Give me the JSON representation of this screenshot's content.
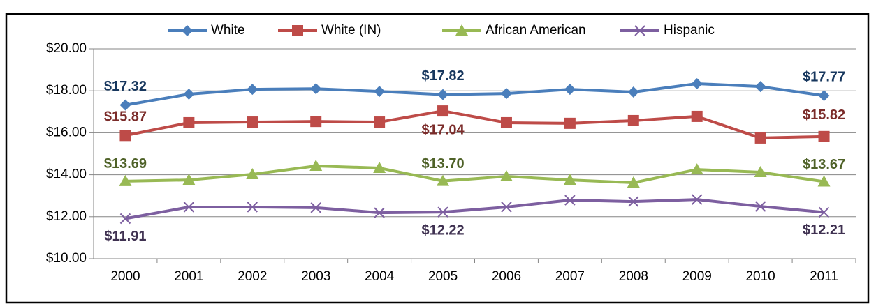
{
  "chart_data": {
    "type": "line",
    "categories": [
      "2000",
      "2001",
      "2002",
      "2003",
      "2004",
      "2005",
      "2006",
      "2007",
      "2008",
      "2009",
      "2010",
      "2011"
    ],
    "ylim": [
      10,
      20
    ],
    "yticks": [
      {
        "value": 10,
        "label": "$10.00"
      },
      {
        "value": 12,
        "label": "$12.00"
      },
      {
        "value": 14,
        "label": "$14.00"
      },
      {
        "value": 16,
        "label": "$16.00"
      },
      {
        "value": 18,
        "label": "$18.00"
      },
      {
        "value": 20,
        "label": "$20.00"
      }
    ],
    "grid": true,
    "legend": "top",
    "series": [
      {
        "name": "White",
        "color": "#4a7ebb",
        "label_color": "#17375e",
        "marker": "diamond",
        "values": [
          17.32,
          17.84,
          18.07,
          18.1,
          17.97,
          17.82,
          17.87,
          18.07,
          17.94,
          18.34,
          18.2,
          17.77
        ],
        "value_labels": [
          "$17.32",
          null,
          null,
          null,
          null,
          "$17.82",
          null,
          null,
          null,
          null,
          null,
          "$17.77"
        ]
      },
      {
        "name": "White (IN)",
        "color": "#be4b48",
        "label_color": "#7b2c2a",
        "marker": "square",
        "values": [
          15.87,
          16.48,
          16.51,
          16.54,
          16.51,
          17.04,
          16.48,
          16.45,
          16.58,
          16.78,
          15.75,
          15.82
        ],
        "value_labels": [
          "$15.87",
          null,
          null,
          null,
          null,
          "$17.04",
          null,
          null,
          null,
          null,
          null,
          "$15.82"
        ]
      },
      {
        "name": "African American",
        "color": "#98b954",
        "label_color": "#4f6228",
        "marker": "triangle",
        "values": [
          13.69,
          13.75,
          14.02,
          14.42,
          14.32,
          13.7,
          13.92,
          13.75,
          13.62,
          14.25,
          14.12,
          13.67
        ],
        "value_labels": [
          "$13.69",
          null,
          null,
          null,
          null,
          "$13.70",
          null,
          null,
          null,
          null,
          null,
          "$13.67"
        ]
      },
      {
        "name": "Hispanic",
        "color": "#7d5fa0",
        "label_color": "#3f3151",
        "marker": "x",
        "values": [
          11.91,
          12.46,
          12.46,
          12.43,
          12.19,
          12.22,
          12.46,
          12.79,
          12.72,
          12.82,
          12.49,
          12.21
        ],
        "value_labels": [
          "$11.91",
          null,
          null,
          null,
          null,
          "$12.22",
          null,
          null,
          null,
          null,
          null,
          "$12.21"
        ]
      }
    ]
  }
}
